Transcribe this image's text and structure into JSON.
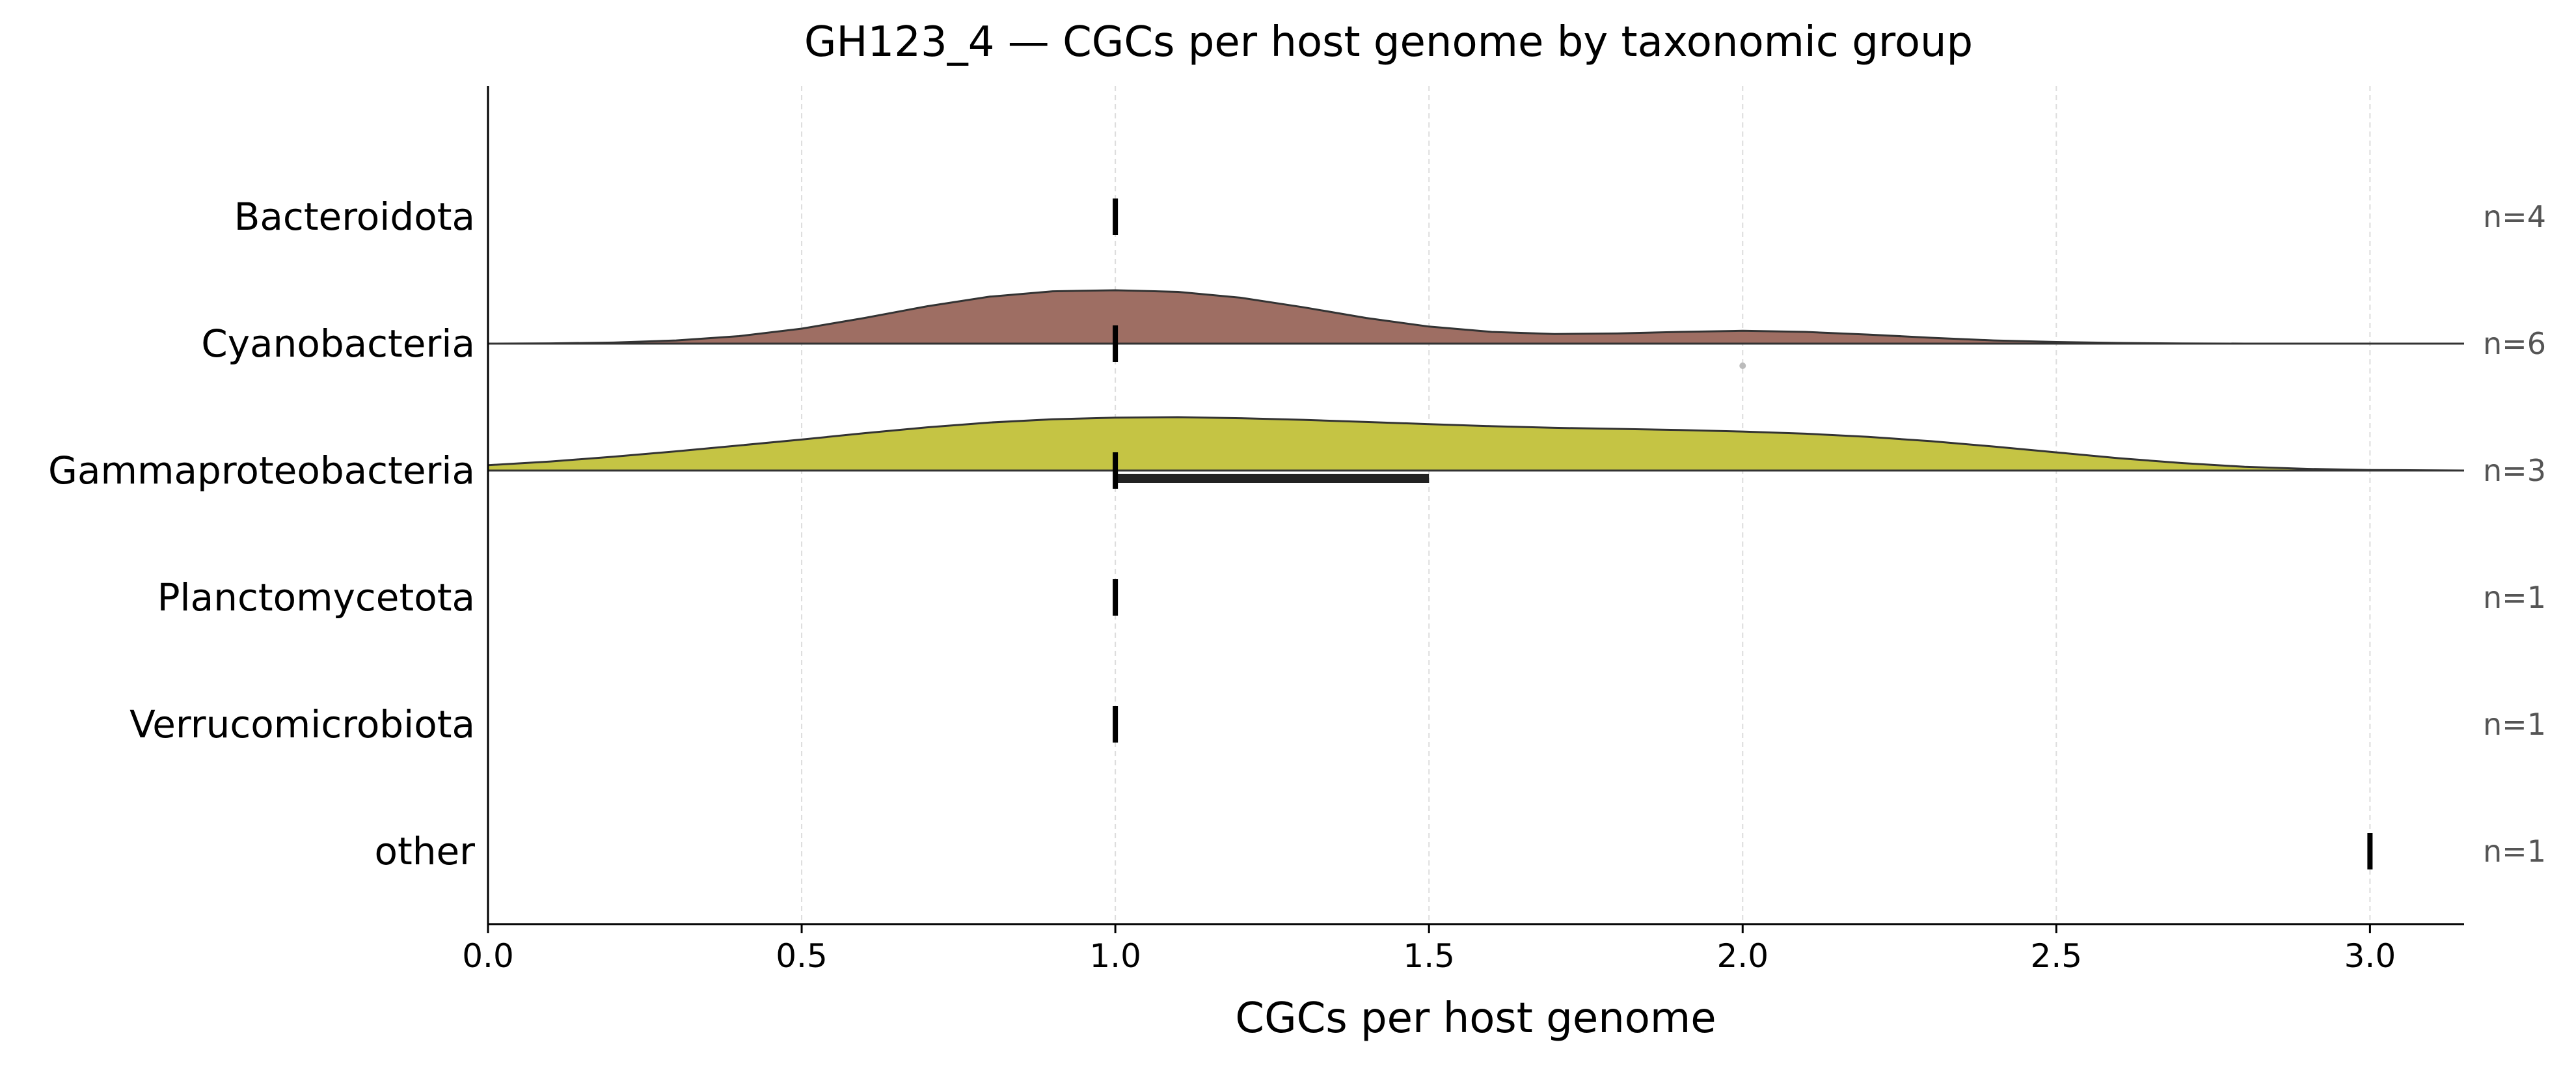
{
  "chart_data": {
    "type": "violin",
    "title": "GH123_4 — CGCs per host genome by taxonomic group",
    "xlabel": "CGCs per host genome",
    "ylabel": "",
    "xlim": [
      0.0,
      3.15
    ],
    "xticks": [
      0.0,
      0.5,
      1.0,
      1.5,
      2.0,
      2.5,
      3.0
    ],
    "xtick_labels": [
      "0.0",
      "0.5",
      "1.0",
      "1.5",
      "2.0",
      "2.5",
      "3.0"
    ],
    "grid": "vertical dashed",
    "categories": [
      "Bacteroidota",
      "Cyanobacteria",
      "Gammaproteobacteria",
      "Planctomycetota",
      "Verrucomicrobiota",
      "other"
    ],
    "counts": [
      "n=4",
      "n=6",
      "n=3",
      "n=1",
      "n=1",
      "n=1"
    ],
    "medians": [
      1.0,
      1.0,
      1.0,
      1.0,
      1.0,
      3.0
    ],
    "iqr": [
      null,
      null,
      [
        1.0,
        1.5
      ],
      null,
      null,
      null
    ],
    "outliers": [
      [],
      [
        2.0
      ],
      [],
      [],
      [],
      []
    ],
    "densities": [
      null,
      {
        "x": [
          0.0,
          0.1,
          0.2,
          0.3,
          0.4,
          0.5,
          0.6,
          0.7,
          0.8,
          0.9,
          1.0,
          1.1,
          1.2,
          1.3,
          1.4,
          1.5,
          1.6,
          1.7,
          1.8,
          1.9,
          2.0,
          2.1,
          2.2,
          2.3,
          2.4,
          2.5,
          2.6,
          2.7,
          2.8,
          2.9,
          3.0,
          3.15
        ],
        "y": [
          0.0,
          0.005,
          0.02,
          0.06,
          0.14,
          0.28,
          0.48,
          0.7,
          0.88,
          0.98,
          1.0,
          0.97,
          0.86,
          0.68,
          0.48,
          0.32,
          0.22,
          0.18,
          0.19,
          0.22,
          0.24,
          0.22,
          0.17,
          0.11,
          0.06,
          0.03,
          0.012,
          0.004,
          0.0,
          0.0,
          0.0,
          0.0
        ]
      },
      {
        "x": [
          0.0,
          0.1,
          0.2,
          0.3,
          0.4,
          0.5,
          0.6,
          0.7,
          0.8,
          0.9,
          1.0,
          1.1,
          1.2,
          1.3,
          1.4,
          1.5,
          1.6,
          1.7,
          1.8,
          1.9,
          2.0,
          2.1,
          2.2,
          2.3,
          2.4,
          2.5,
          2.6,
          2.7,
          2.8,
          2.9,
          3.0,
          3.15
        ],
        "y": [
          0.1,
          0.17,
          0.26,
          0.36,
          0.47,
          0.58,
          0.7,
          0.81,
          0.9,
          0.96,
          0.99,
          1.0,
          0.98,
          0.95,
          0.91,
          0.87,
          0.83,
          0.8,
          0.78,
          0.76,
          0.73,
          0.69,
          0.63,
          0.55,
          0.45,
          0.34,
          0.23,
          0.14,
          0.07,
          0.03,
          0.01,
          0.0
        ]
      },
      null,
      null,
      null
    ],
    "colors": {
      "Cyanobacteria": "#9e6e63",
      "Gammaproteobacteria": "#c5c444",
      "edge": "#333333",
      "median": "#000000",
      "iqr": "#222222",
      "outlier": "#bbbbbb",
      "grid": "#dddddd",
      "count_text": "#555555"
    }
  }
}
